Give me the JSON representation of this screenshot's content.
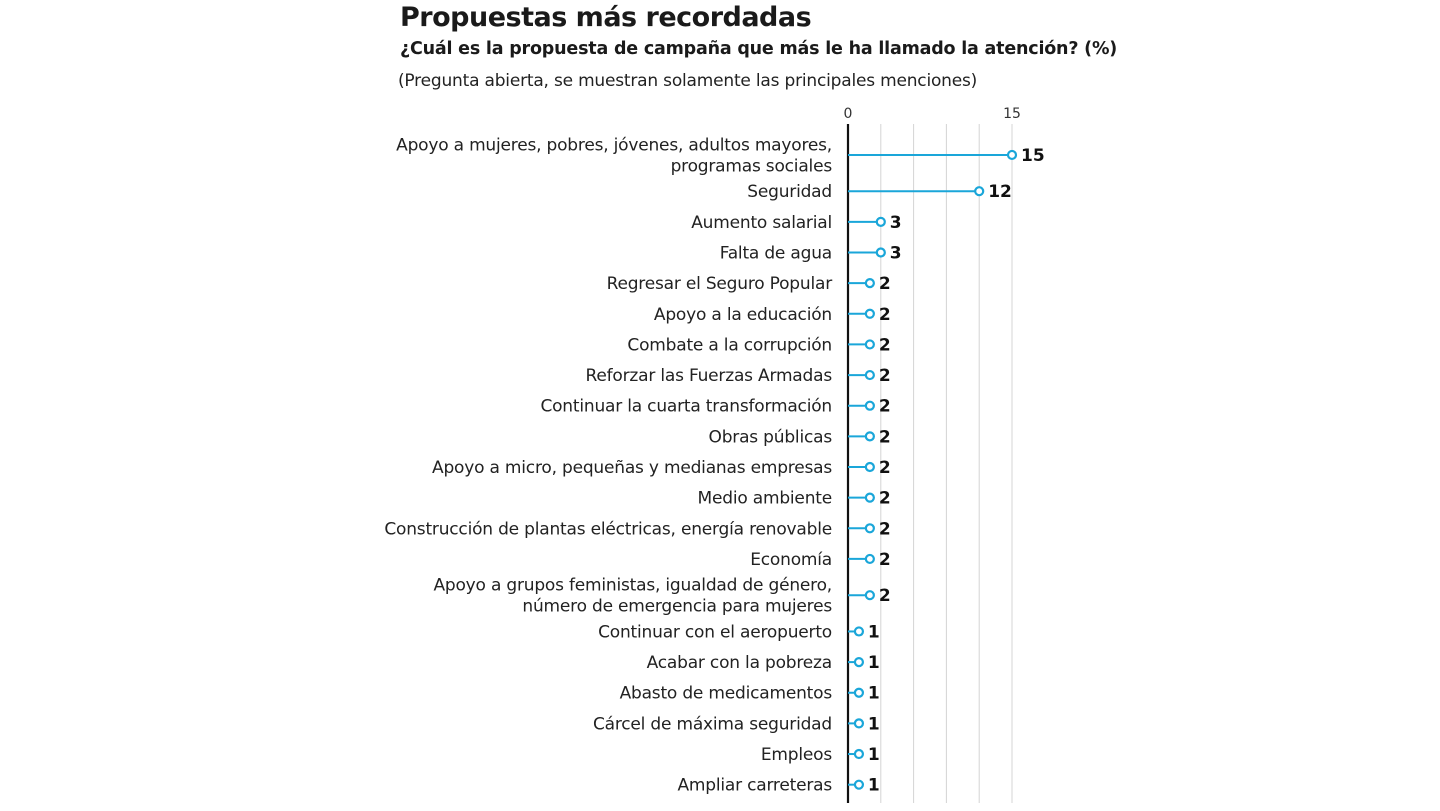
{
  "chart_data": {
    "type": "bar",
    "title": "Propuestas más recordadas",
    "subtitle": "¿Cuál es la propuesta de campaña que más le ha llamado la atención?  (%)",
    "note": "(Pregunta abierta, se muestran solamente las principales menciones)",
    "xlim": [
      0,
      15
    ],
    "ticks": [
      "0",
      "15"
    ],
    "grid": true,
    "accent_color": "#1aa6d9",
    "categories": [
      [
        "Apoyo a mujeres, pobres, jóvenes, adultos mayores,",
        "programas sociales"
      ],
      [
        "Seguridad"
      ],
      [
        "Aumento salarial"
      ],
      [
        "Falta de agua"
      ],
      [
        "Regresar el Seguro Popular"
      ],
      [
        "Apoyo a la educación"
      ],
      [
        "Combate a la corrupción"
      ],
      [
        "Reforzar las Fuerzas Armadas"
      ],
      [
        "Continuar la cuarta transformación"
      ],
      [
        "Obras públicas"
      ],
      [
        "Apoyo a micro, pequeñas y medianas empresas"
      ],
      [
        "Medio ambiente"
      ],
      [
        "Construcción de plantas eléctricas, energía renovable"
      ],
      [
        "Economía"
      ],
      [
        "Apoyo a grupos feministas, igualdad de género,",
        "número de emergencia para mujeres"
      ],
      [
        "Continuar con el aeropuerto"
      ],
      [
        "Acabar con la pobreza"
      ],
      [
        "Abasto de medicamentos"
      ],
      [
        "Cárcel de máxima seguridad"
      ],
      [
        "Empleos"
      ],
      [
        "Ampliar carreteras"
      ]
    ],
    "values": [
      15,
      12,
      3,
      3,
      2,
      2,
      2,
      2,
      2,
      2,
      2,
      2,
      2,
      2,
      2,
      1,
      1,
      1,
      1,
      1,
      1
    ],
    "value_labels": [
      "15",
      "12",
      "3",
      "3",
      "2",
      "2",
      "2",
      "2",
      "2",
      "2",
      "2",
      "2",
      "2",
      "2",
      "2",
      "1",
      "1",
      "1",
      "1",
      "1",
      "1"
    ]
  }
}
